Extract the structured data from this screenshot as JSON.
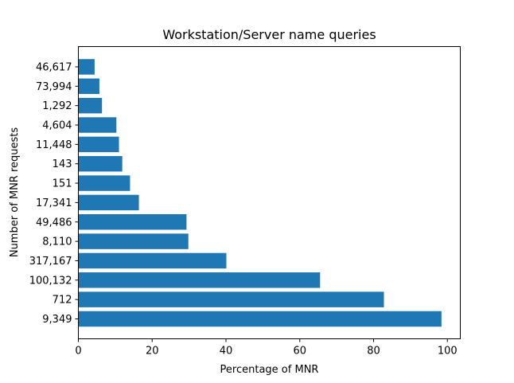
{
  "chart_data": {
    "type": "bar",
    "orientation": "horizontal",
    "title": "Workstation/Server name queries",
    "xlabel": "Percentage of MNR",
    "ylabel": "Number of MNR requests",
    "xlim": [
      0,
      103.5
    ],
    "xticks": [
      0,
      20,
      40,
      60,
      80,
      100
    ],
    "categories": [
      "9,349",
      "712",
      "100,132",
      "317,167",
      "8,110",
      "49,486",
      "17,341",
      "151",
      "143",
      "11,448",
      "4,604",
      "1,292",
      "73,994",
      "46,617"
    ],
    "values": [
      98.4,
      82.8,
      65.5,
      40.1,
      29.8,
      29.3,
      16.4,
      14.0,
      11.9,
      11.0,
      10.3,
      6.4,
      5.7,
      4.4
    ],
    "color": "#1f77b4",
    "grid": false,
    "legend": "none"
  }
}
